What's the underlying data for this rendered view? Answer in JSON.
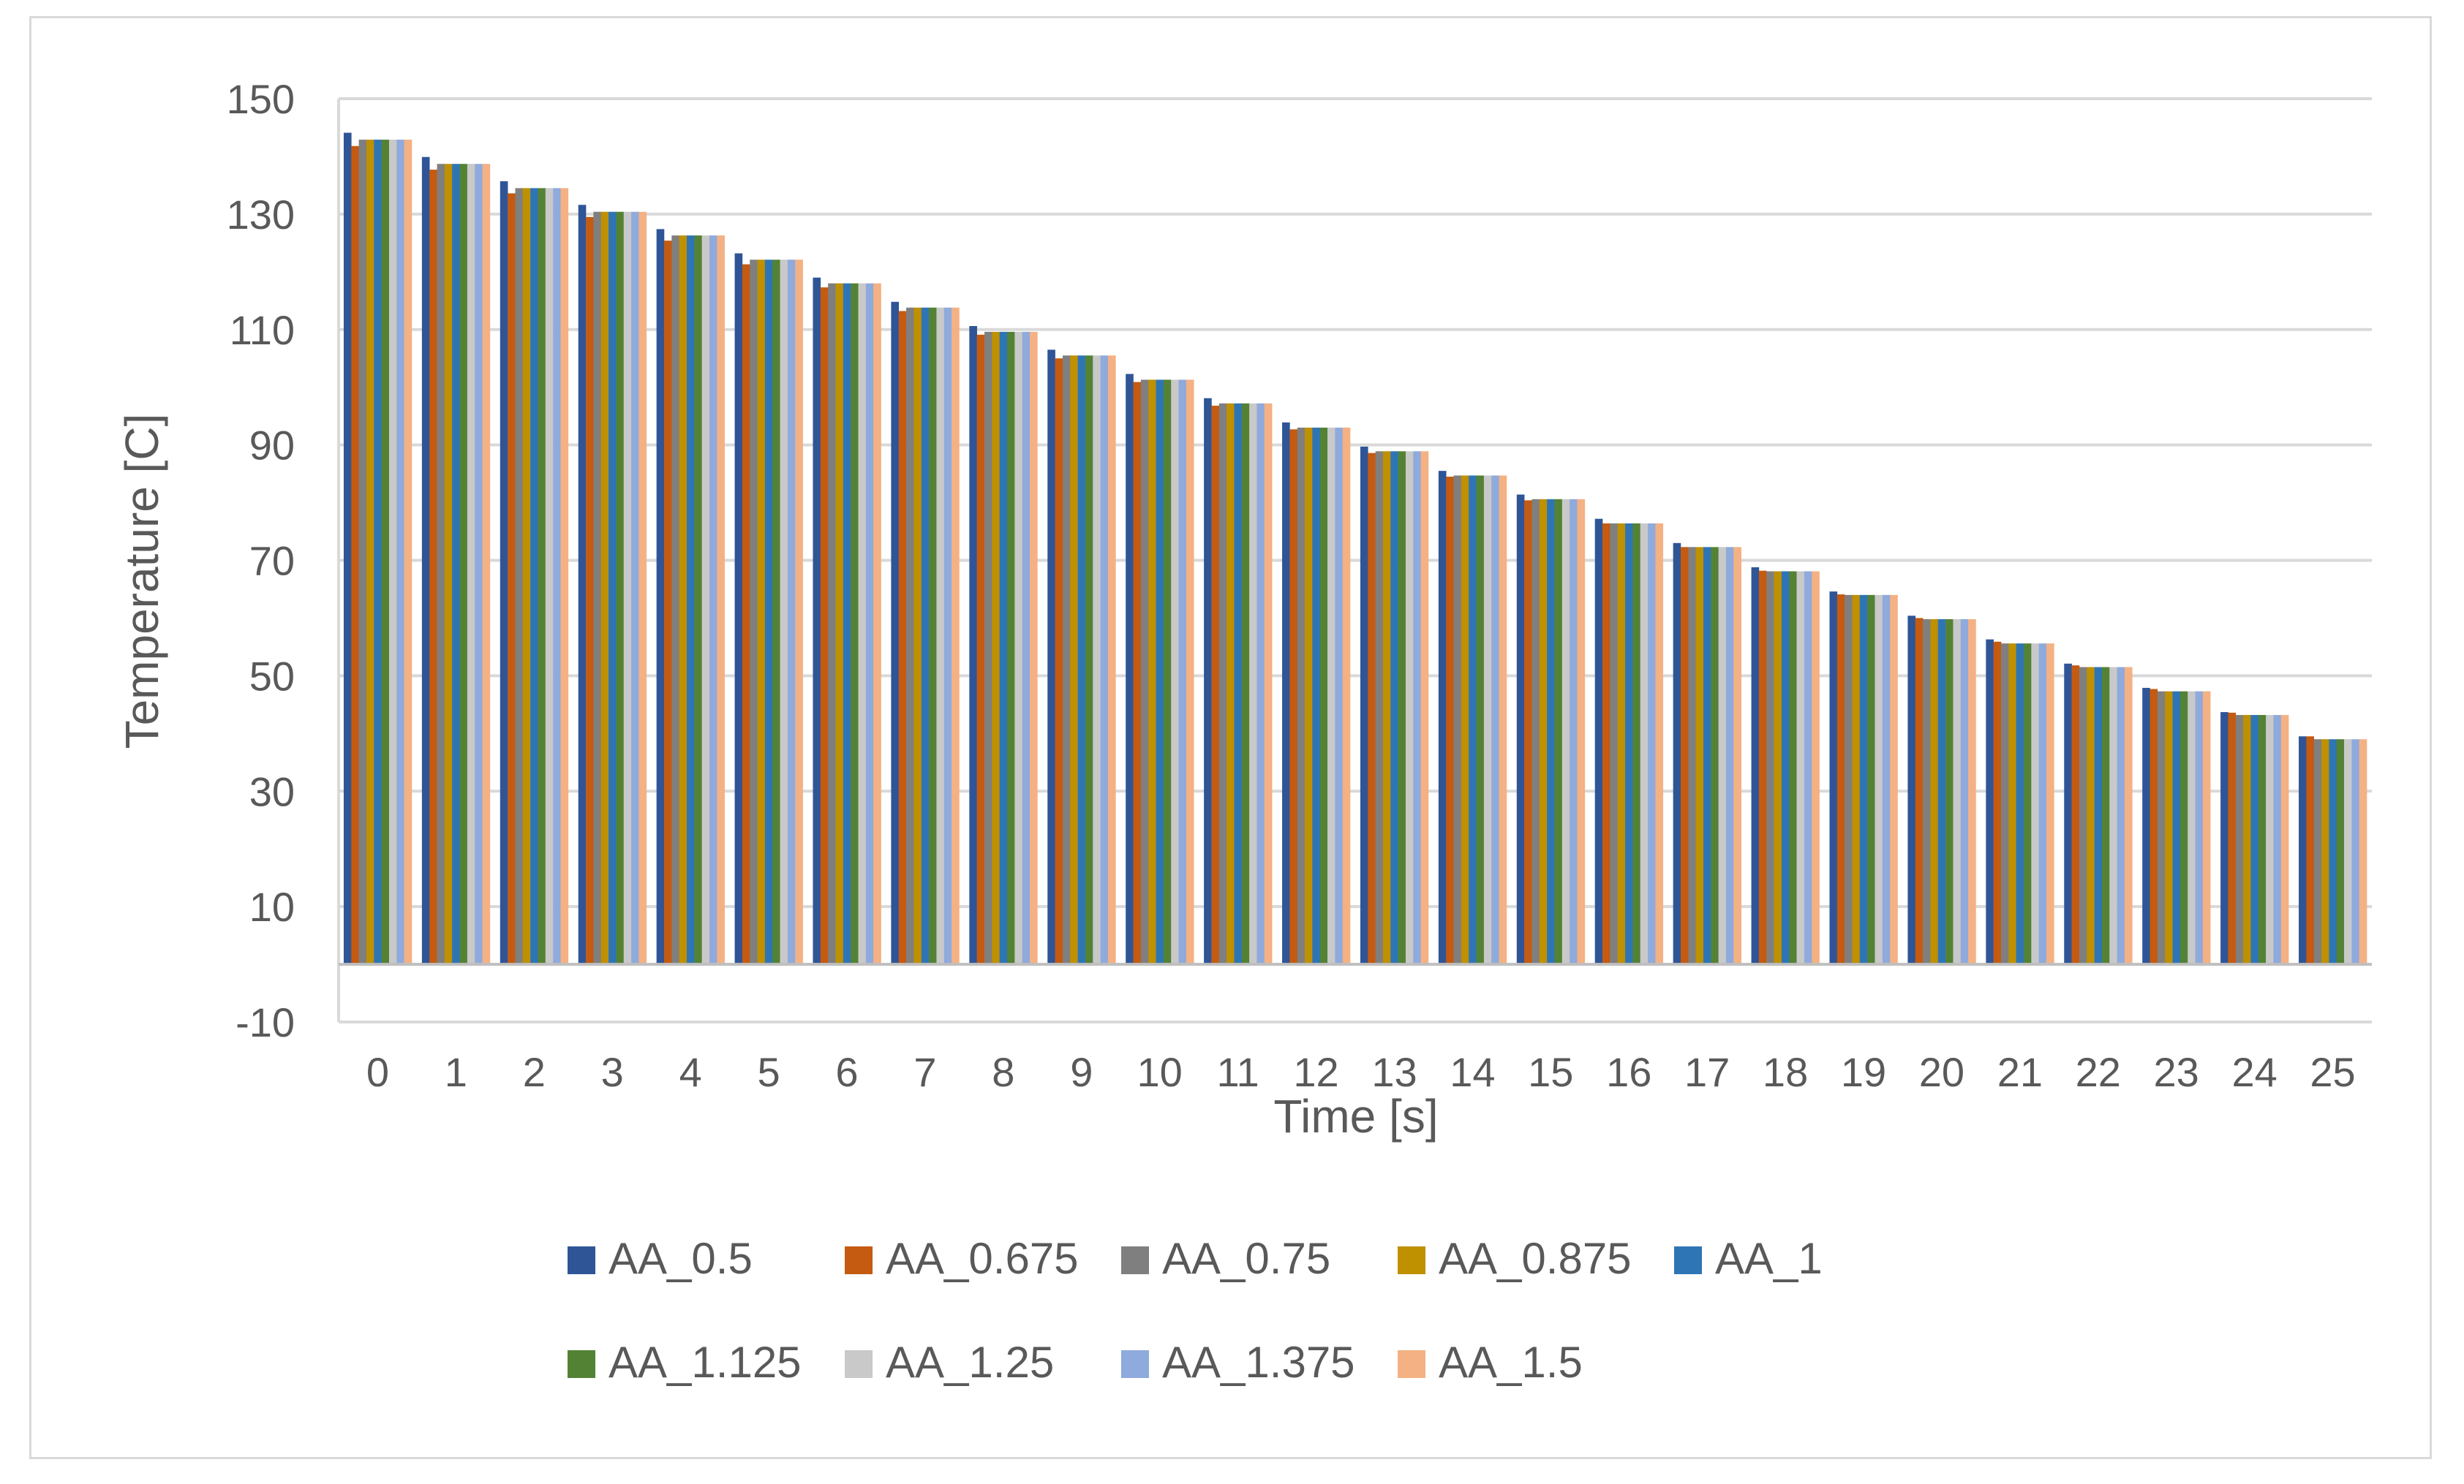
{
  "chart_data": {
    "type": "bar",
    "title": "",
    "xlabel": "Time [s]",
    "ylabel": "Temperature [C]",
    "ylim": [
      -10,
      150
    ],
    "yticks": [
      "150",
      "130",
      "110",
      "90",
      "70",
      "50",
      "30",
      "10",
      "-10"
    ],
    "grid": true,
    "legend_position": "bottom",
    "categories": [
      "0",
      "1",
      "2",
      "3",
      "4",
      "5",
      "6",
      "7",
      "8",
      "9",
      "10",
      "11",
      "12",
      "13",
      "14",
      "15",
      "16",
      "17",
      "18",
      "19",
      "20",
      "21",
      "22",
      "23",
      "24",
      "25"
    ],
    "series": [
      {
        "name": "AA_0.5",
        "color": "#2f5597",
        "values": [
          144.1,
          139.9,
          135.7,
          131.6,
          127.4,
          123.2,
          119.0,
          114.8,
          110.6,
          106.5,
          102.3,
          98.1,
          93.9,
          89.7,
          85.5,
          81.4,
          77.2,
          73.0,
          68.8,
          64.6,
          60.4,
          56.3,
          52.1,
          47.9,
          43.7,
          39.5
        ]
      },
      {
        "name": "AA_0.675",
        "color": "#c55a11",
        "values": [
          141.8,
          137.7,
          133.6,
          129.5,
          125.4,
          121.3,
          117.3,
          113.2,
          109.1,
          105.0,
          100.9,
          96.8,
          92.7,
          88.6,
          84.5,
          80.4,
          76.4,
          72.3,
          68.2,
          64.1,
          60.0,
          55.9,
          51.8,
          47.7,
          43.6,
          39.5
        ]
      },
      {
        "name": "AA_0.75",
        "color": "#7f7f7f",
        "values": [
          142.9,
          138.7,
          134.5,
          130.4,
          126.3,
          122.1,
          118.0,
          113.8,
          109.6,
          105.5,
          101.3,
          97.2,
          93.0,
          88.9,
          84.7,
          80.6,
          76.4,
          72.3,
          68.1,
          64.0,
          59.8,
          55.6,
          51.5,
          47.3,
          43.2,
          39.0
        ]
      },
      {
        "name": "AA_0.875",
        "color": "#bf9000",
        "values": [
          142.9,
          138.7,
          134.5,
          130.4,
          126.3,
          122.1,
          118.0,
          113.8,
          109.6,
          105.5,
          101.3,
          97.2,
          93.0,
          88.9,
          84.7,
          80.6,
          76.4,
          72.3,
          68.1,
          64.0,
          59.8,
          55.6,
          51.5,
          47.3,
          43.2,
          39.0
        ]
      },
      {
        "name": "AA_1",
        "color": "#2e75b6",
        "values": [
          142.9,
          138.7,
          134.5,
          130.4,
          126.3,
          122.1,
          118.0,
          113.8,
          109.6,
          105.5,
          101.3,
          97.2,
          93.0,
          88.9,
          84.7,
          80.6,
          76.4,
          72.3,
          68.1,
          64.0,
          59.8,
          55.6,
          51.5,
          47.3,
          43.2,
          39.0
        ]
      },
      {
        "name": "AA_1.125",
        "color": "#548235",
        "values": [
          142.9,
          138.7,
          134.5,
          130.4,
          126.3,
          122.1,
          118.0,
          113.8,
          109.6,
          105.5,
          101.3,
          97.2,
          93.0,
          88.9,
          84.7,
          80.6,
          76.4,
          72.3,
          68.1,
          64.0,
          59.8,
          55.6,
          51.5,
          47.3,
          43.2,
          39.0
        ]
      },
      {
        "name": "AA_1.25",
        "color": "#c9c9c9",
        "values": [
          142.9,
          138.7,
          134.5,
          130.4,
          126.3,
          122.1,
          118.0,
          113.8,
          109.6,
          105.5,
          101.3,
          97.2,
          93.0,
          88.9,
          84.7,
          80.6,
          76.4,
          72.3,
          68.1,
          64.0,
          59.8,
          55.6,
          51.5,
          47.3,
          43.2,
          39.0
        ]
      },
      {
        "name": "AA_1.375",
        "color": "#8faadc",
        "values": [
          142.9,
          138.7,
          134.5,
          130.4,
          126.3,
          122.1,
          118.0,
          113.8,
          109.6,
          105.5,
          101.3,
          97.2,
          93.0,
          88.9,
          84.7,
          80.6,
          76.4,
          72.3,
          68.1,
          64.0,
          59.8,
          55.6,
          51.5,
          47.3,
          43.2,
          39.0
        ]
      },
      {
        "name": "AA_1.5",
        "color": "#f4b183",
        "values": [
          142.9,
          138.7,
          134.5,
          130.4,
          126.3,
          122.1,
          118.0,
          113.8,
          109.6,
          105.5,
          101.3,
          97.2,
          93.0,
          88.9,
          84.7,
          80.6,
          76.4,
          72.3,
          68.1,
          64.0,
          59.8,
          55.6,
          51.5,
          47.3,
          43.2,
          39.0
        ]
      }
    ]
  }
}
